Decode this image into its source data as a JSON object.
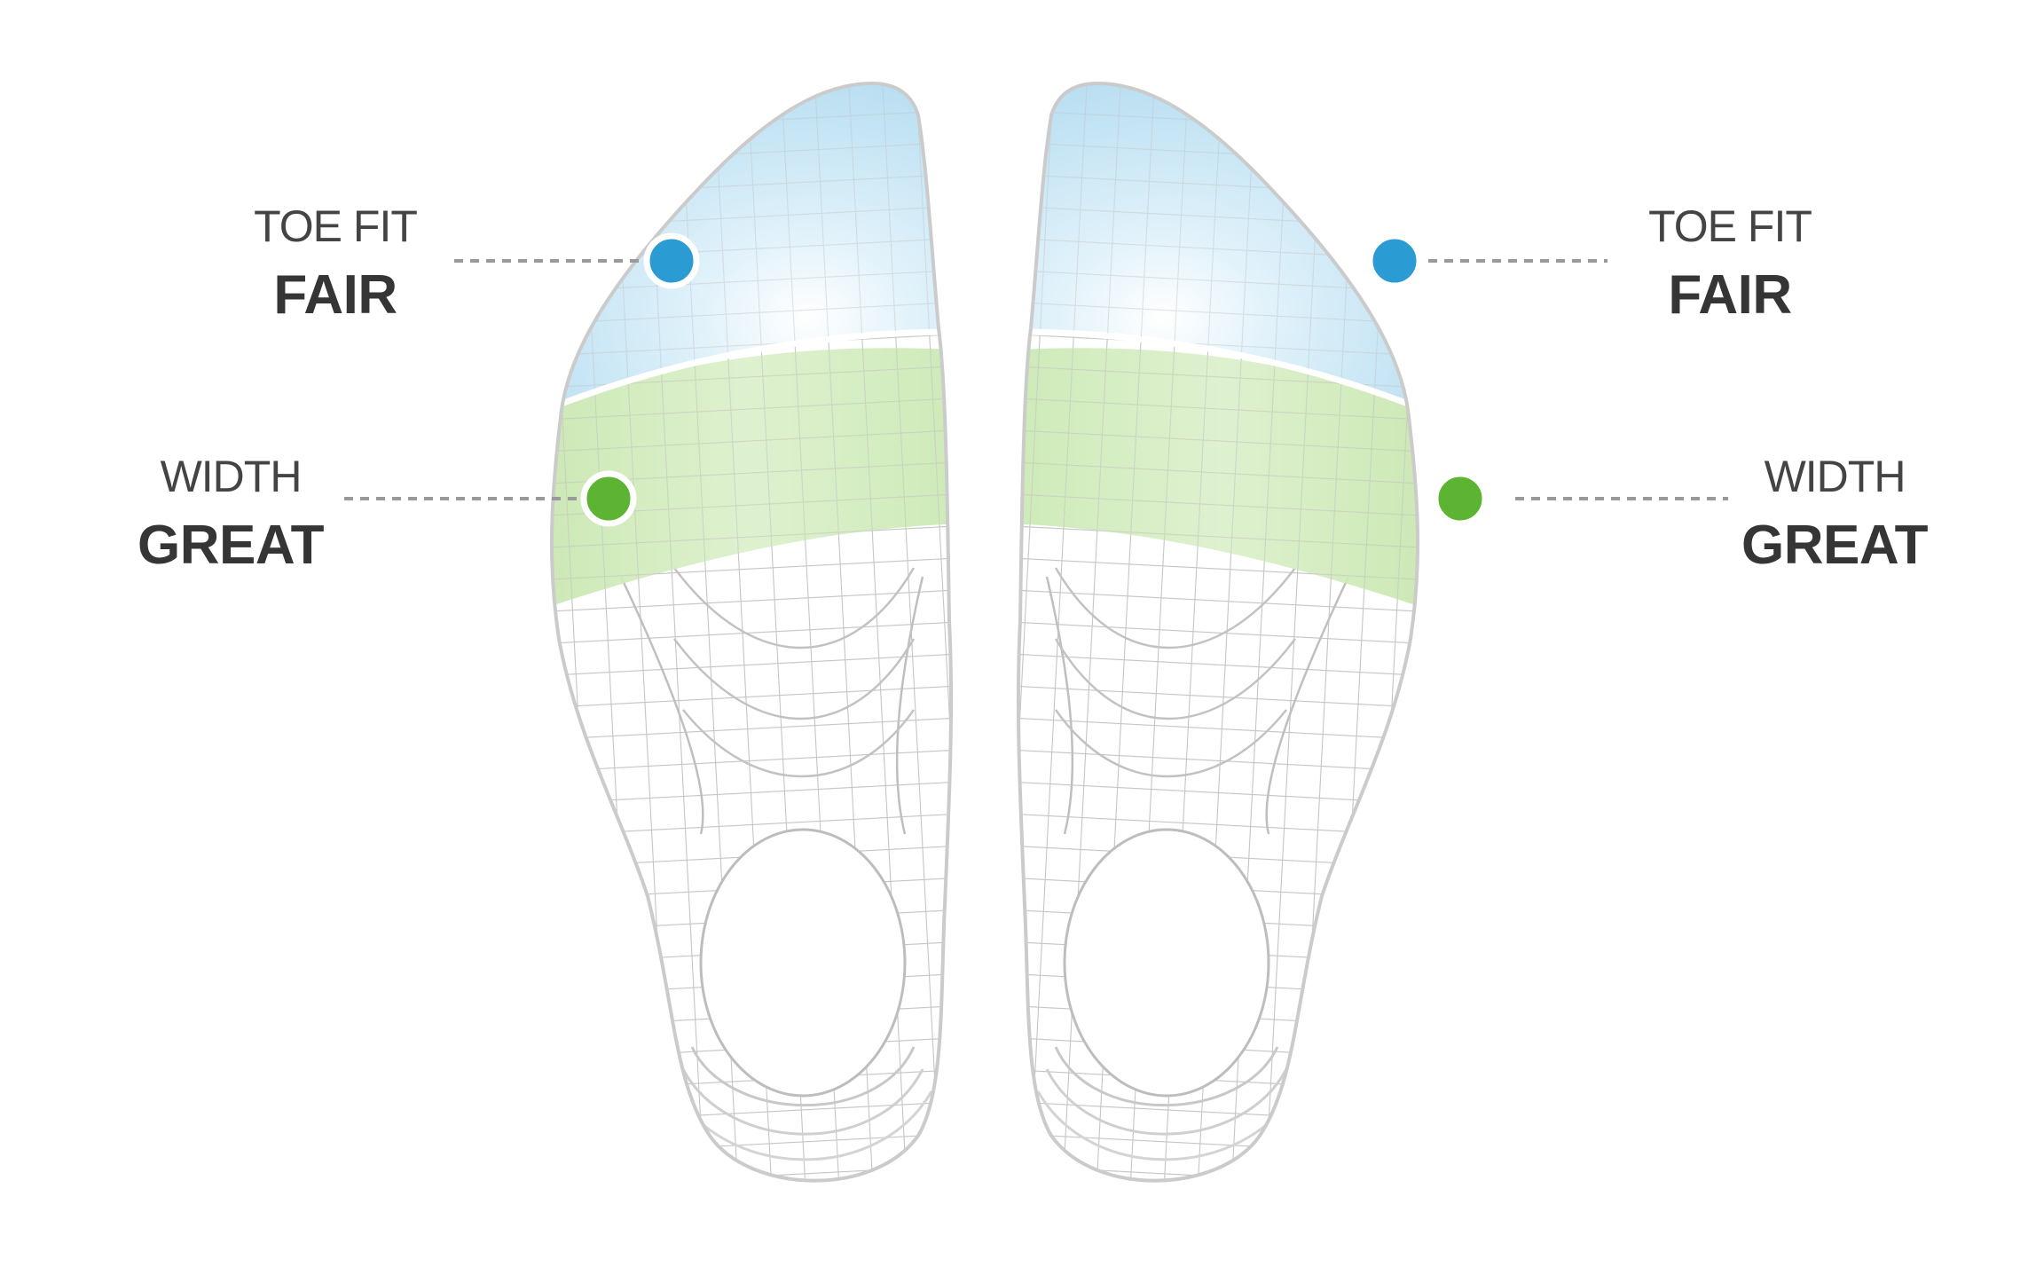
{
  "colors": {
    "toe_zone": "#bfe3f3",
    "toe_dot": "#2a9bd3",
    "width_zone": "#cfeab8",
    "width_dot": "#5db433",
    "mesh": "#c9c9c9",
    "outline": "#cfcfcf",
    "label_text": "#3a3a3a",
    "leader_line": "#9a9a9a"
  },
  "feet": [
    {
      "side": "left",
      "zones": [
        {
          "metric": "TOE FIT",
          "rating": "FAIR",
          "color_key": "toe"
        },
        {
          "metric": "WIDTH",
          "rating": "GREAT",
          "color_key": "width"
        }
      ]
    },
    {
      "side": "right",
      "zones": [
        {
          "metric": "TOE FIT",
          "rating": "FAIR",
          "color_key": "toe"
        },
        {
          "metric": "WIDTH",
          "rating": "GREAT",
          "color_key": "width"
        }
      ]
    }
  ]
}
